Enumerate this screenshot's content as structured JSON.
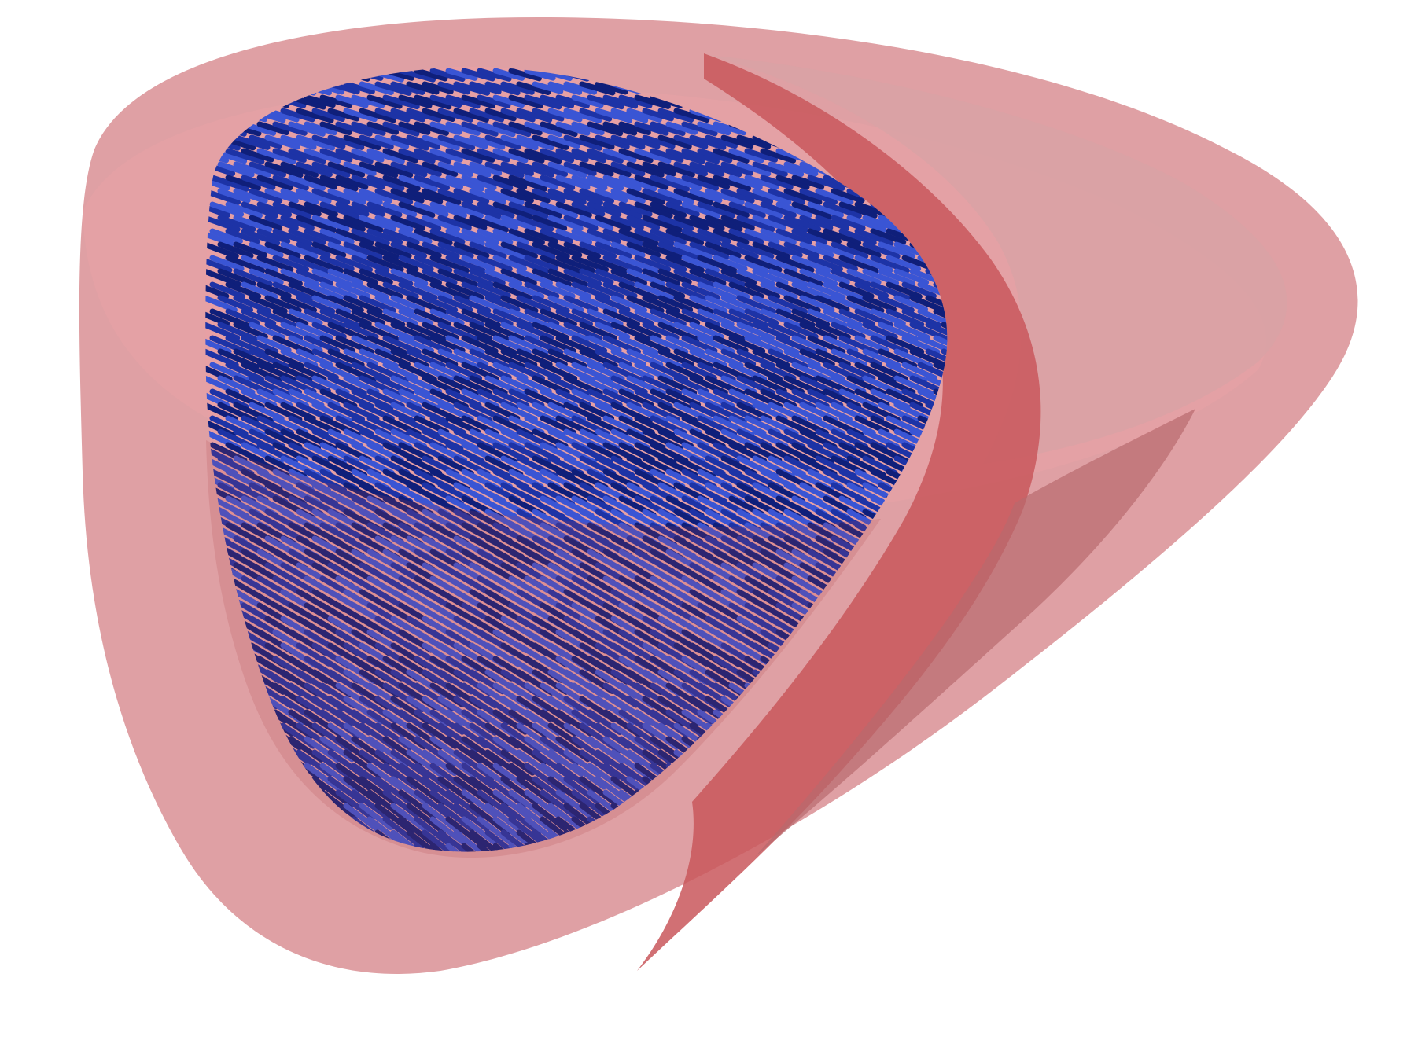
{
  "scene": {
    "subject": "heart-ventricle-fiber-render",
    "colors": {
      "background": "#ffffff",
      "outer_shell": "#d98f94",
      "shell_rim": "#e8a2a6",
      "septum": "#c9575c",
      "septum_edge": "#b8484e",
      "fibers": "#1d33a6",
      "fibers_dark": "#0f1f7a",
      "fibers_light": "#3a55d4"
    }
  }
}
